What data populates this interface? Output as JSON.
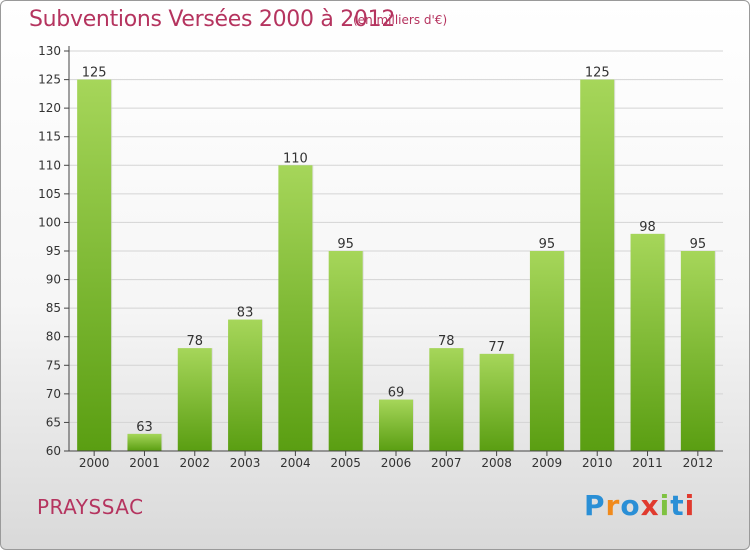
{
  "header": {
    "title": "Subventions Versées 2000 à 2012",
    "subtitle": "(en milliers d'€)"
  },
  "footer": {
    "commune": "PRAYSSAC",
    "logo_text": "Proxiti",
    "logo_colors": [
      "#2a8fd6",
      "#f08a1c",
      "#2a8fd6",
      "#e03a2e",
      "#7fc241",
      "#2a8fd6",
      "#e03a2e"
    ]
  },
  "colors": {
    "bar_light": "#a6d65a",
    "bar_dark": "#5a9e12",
    "grid": "#d4d4d4",
    "axis": "#444444",
    "title": "#b5345f"
  },
  "chart_data": {
    "type": "bar",
    "categories": [
      "2000",
      "2001",
      "2002",
      "2003",
      "2004",
      "2005",
      "2006",
      "2007",
      "2008",
      "2009",
      "2010",
      "2011",
      "2012"
    ],
    "values": [
      125,
      63,
      78,
      83,
      110,
      95,
      69,
      78,
      77,
      95,
      125,
      98,
      95
    ],
    "title": "Subventions Versées 2000 à 2012",
    "xlabel": "",
    "ylabel": "",
    "ylim": [
      60,
      130
    ],
    "yticks": [
      60,
      65,
      70,
      75,
      80,
      85,
      90,
      95,
      100,
      105,
      110,
      115,
      120,
      125,
      130
    ],
    "grid": true
  }
}
